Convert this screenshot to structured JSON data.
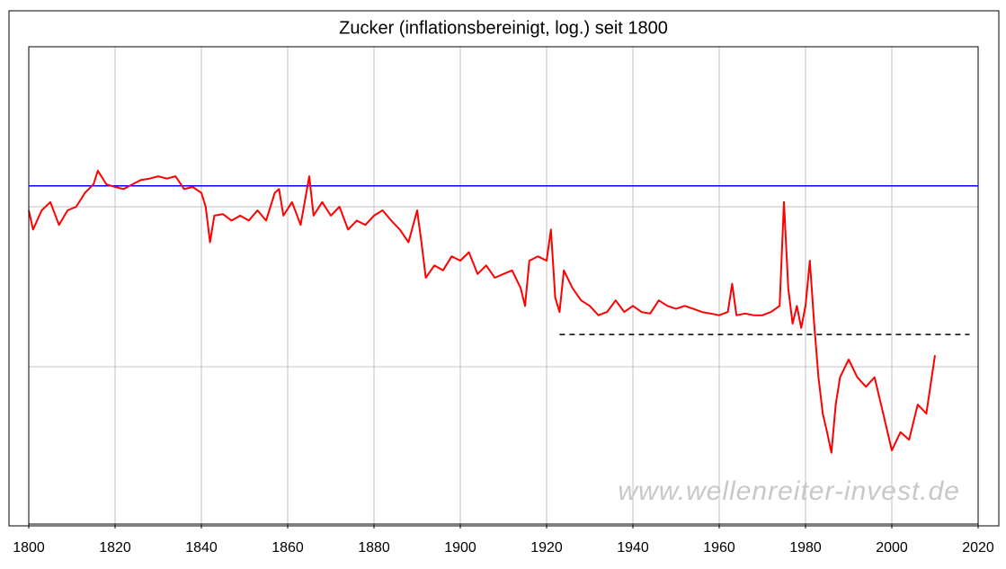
{
  "chart_data": {
    "type": "line",
    "title": "Zucker (inflationsbereinigt, log.) seit 1800",
    "annotation": "www.wellenreiter-invest.de",
    "log_y": true,
    "grid": true,
    "xlim": [
      1800,
      2020
    ],
    "xticks": [
      1800,
      1820,
      1840,
      1860,
      1880,
      1900,
      1920,
      1940,
      1960,
      1980,
      2000,
      2020
    ],
    "ylim": [
      1.04,
      1000
    ],
    "yticks": [
      10,
      100
    ],
    "reference_lines": [
      {
        "value": 135,
        "color": "#0000ff",
        "style": "solid"
      },
      {
        "value": 15.9,
        "xrange": [
          1923,
          2018
        ],
        "color": "#000000",
        "style": "dashed"
      }
    ],
    "series": [
      {
        "color": "#ff0000",
        "x": [
          1800,
          1801,
          1803,
          1805,
          1807,
          1809,
          1811,
          1813,
          1815,
          1816,
          1818,
          1820,
          1822,
          1824,
          1826,
          1828,
          1830,
          1832,
          1834,
          1836,
          1838,
          1840,
          1841,
          1842,
          1843,
          1845,
          1847,
          1849,
          1851,
          1853,
          1855,
          1857,
          1858,
          1859,
          1861,
          1863,
          1865,
          1866,
          1868,
          1870,
          1872,
          1874,
          1876,
          1878,
          1880,
          1882,
          1884,
          1886,
          1888,
          1890,
          1891,
          1892,
          1894,
          1896,
          1898,
          1900,
          1902,
          1904,
          1906,
          1908,
          1910,
          1912,
          1914,
          1915,
          1916,
          1918,
          1920,
          1921,
          1922,
          1923,
          1924,
          1926,
          1928,
          1930,
          1932,
          1934,
          1936,
          1938,
          1940,
          1942,
          1944,
          1946,
          1948,
          1950,
          1952,
          1954,
          1956,
          1958,
          1960,
          1962,
          1963,
          1964,
          1966,
          1968,
          1970,
          1972,
          1974,
          1975,
          1976,
          1977,
          1978,
          1979,
          1980,
          1981,
          1982,
          1983,
          1984,
          1985,
          1986,
          1987,
          1988,
          1990,
          1992,
          1994,
          1996,
          1998,
          2000,
          2002,
          2004,
          2006,
          2008,
          2010
        ],
        "values": [
          95,
          72,
          95,
          107,
          77,
          95,
          100,
          122,
          138,
          168,
          138,
          133,
          129,
          138,
          147,
          150,
          155,
          150,
          155,
          129,
          133,
          122,
          100,
          60,
          88,
          90,
          82,
          88,
          82,
          95,
          82,
          122,
          129,
          88,
          107,
          77,
          155,
          88,
          107,
          88,
          100,
          72,
          82,
          77,
          88,
          95,
          82,
          72,
          60,
          95,
          60,
          36,
          43,
          40,
          49,
          46,
          52,
          38,
          43,
          36,
          38,
          40,
          31,
          24,
          46,
          49,
          46,
          72,
          27,
          22,
          40,
          31,
          26,
          24,
          21,
          22,
          26,
          22,
          24,
          22,
          21.5,
          26,
          24,
          23,
          24,
          23,
          22,
          21.5,
          21,
          22,
          33,
          21,
          21.5,
          21,
          21,
          22,
          24,
          107,
          31,
          18.6,
          24,
          17.5,
          24,
          46,
          18.6,
          8.6,
          5.1,
          3.9,
          2.9,
          5.8,
          8.6,
          11.1,
          8.6,
          7.5,
          8.6,
          5.1,
          3.0,
          3.9,
          3.5,
          5.8,
          5.1,
          11.8
        ]
      }
    ]
  }
}
